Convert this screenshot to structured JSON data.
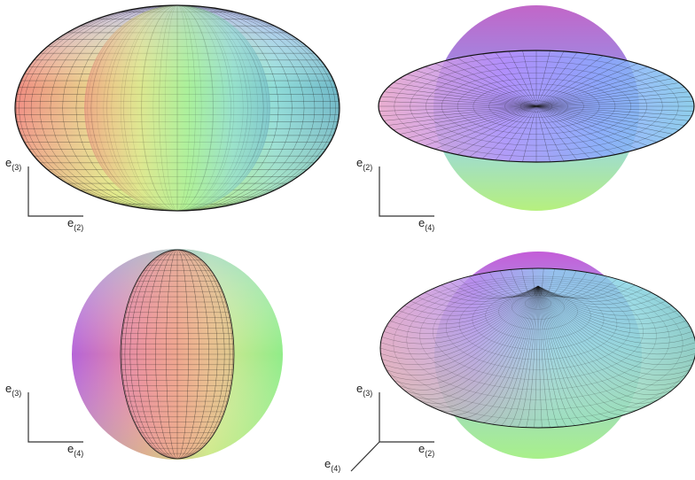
{
  "panels": [
    {
      "id": "top-left",
      "description_shape": "prolate-inner-sphere-with-oblate-wireframe",
      "axes": {
        "vertical": "e",
        "vertical_sub": "(3)",
        "horizontal": "e",
        "horizontal_sub": "(2)"
      }
    },
    {
      "id": "top-right",
      "description_shape": "sphere-with-flat-disc",
      "axes": {
        "vertical": "e",
        "vertical_sub": "(2)",
        "horizontal": "e",
        "horizontal_sub": "(4)"
      }
    },
    {
      "id": "bottom-left",
      "description_shape": "sphere-with-narrow-ellipsoid",
      "axes": {
        "vertical": "e",
        "vertical_sub": "(3)",
        "horizontal": "e",
        "horizontal_sub": "(4)"
      }
    },
    {
      "id": "bottom-right",
      "description_shape": "sphere-with-torus-like-surface",
      "axes": {
        "vertical": "e",
        "vertical_sub": "(3)",
        "horizontal": "e",
        "horizontal_sub": "(2)",
        "diagonal": "e",
        "diagonal_sub": "(4)"
      }
    }
  ],
  "colors": {
    "red": "#f08a80",
    "green": "#a8f09a",
    "blue": "#9fb4ff",
    "magenta": "#c47ae8",
    "cyan": "#7fd8e6",
    "yellow": "#e9f08a",
    "mesh": "#1a1a1a"
  }
}
